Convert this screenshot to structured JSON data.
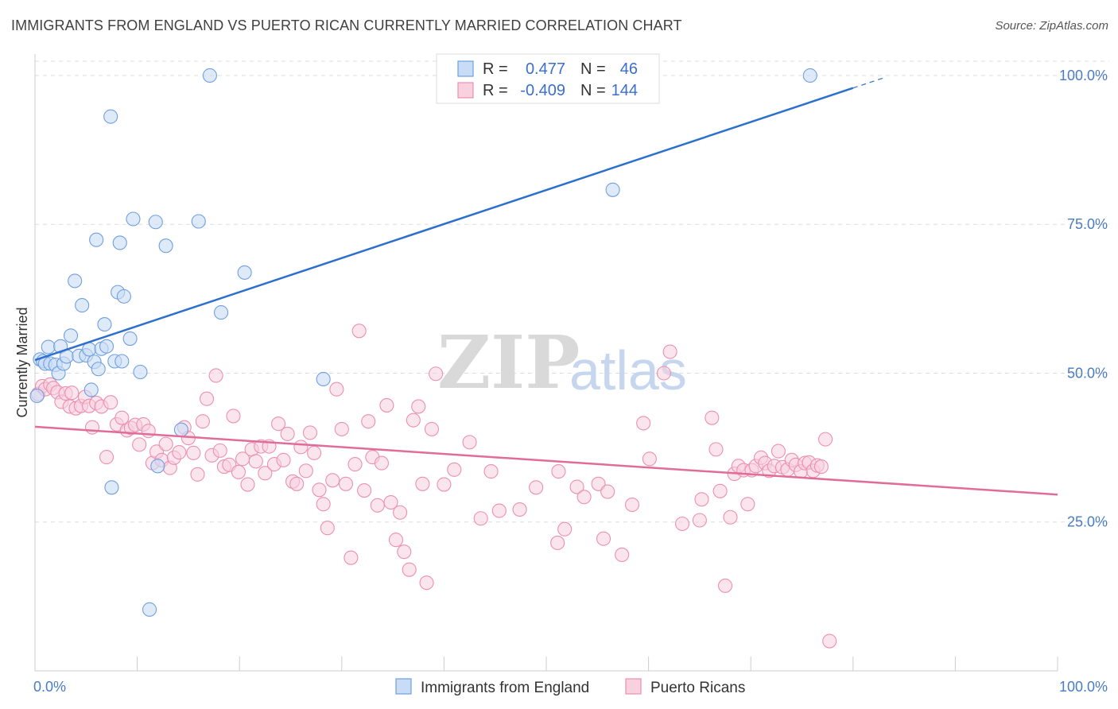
{
  "title": "IMMIGRANTS FROM ENGLAND VS PUERTO RICAN CURRENTLY MARRIED CORRELATION CHART",
  "source": "Source: ZipAtlas.com",
  "watermark": {
    "zip": "ZIP",
    "atlas": "atlas"
  },
  "legend": {
    "r_label": "R =",
    "n_label": "N =",
    "rows": [
      {
        "r": "0.477",
        "n": "46"
      },
      {
        "r": "-0.409",
        "n": "144"
      }
    ]
  },
  "colors": {
    "blue": "#6f9fe0",
    "blue_fill": "#c9dcf5",
    "blue_line": "#2d6fcf",
    "pink": "#ec8fb0",
    "pink_fill": "#f8d0de",
    "pink_line": "#e06d98",
    "grid": "#dddddd",
    "axis_text": "#4a7cc4"
  },
  "chart_data": {
    "type": "scatter",
    "title": "IMMIGRANTS FROM ENGLAND VS PUERTO RICAN CURRENTLY MARRIED CORRELATION CHART",
    "xlabel": "",
    "ylabel": "Currently Married",
    "xlim": [
      0,
      100
    ],
    "ylim": [
      0,
      102
    ],
    "x_tick_labels": [
      "0.0%",
      "100.0%"
    ],
    "y_ticks": [
      25,
      50,
      75,
      100
    ],
    "y_tick_labels": [
      "25.0%",
      "50.0%",
      "75.0%",
      "100.0%"
    ],
    "grid": true,
    "legend_position": "top-center",
    "series": [
      {
        "name": "Immigrants from England",
        "r": 0.477,
        "n": 46,
        "trend": {
          "x0": 0,
          "y0": 52.2,
          "x1": 80,
          "y1": 97.9,
          "dash_to": {
            "x": 83,
            "y": 99.6
          }
        },
        "points": [
          [
            0.2,
            46.2
          ],
          [
            0.5,
            52.3
          ],
          [
            0.8,
            52.0
          ],
          [
            1.0,
            51.6
          ],
          [
            1.3,
            54.4
          ],
          [
            1.5,
            51.6
          ],
          [
            2.0,
            51.4
          ],
          [
            2.3,
            50.0
          ],
          [
            2.5,
            54.5
          ],
          [
            2.8,
            51.6
          ],
          [
            3.1,
            52.8
          ],
          [
            3.5,
            56.3
          ],
          [
            3.9,
            65.5
          ],
          [
            4.3,
            52.9
          ],
          [
            4.6,
            61.4
          ],
          [
            5.0,
            53.0
          ],
          [
            5.3,
            54.0
          ],
          [
            5.5,
            47.2
          ],
          [
            5.8,
            51.9
          ],
          [
            6.0,
            72.4
          ],
          [
            6.2,
            50.7
          ],
          [
            6.5,
            54.1
          ],
          [
            6.8,
            58.2
          ],
          [
            7.0,
            54.5
          ],
          [
            7.4,
            93.1
          ],
          [
            7.8,
            52.0
          ],
          [
            8.1,
            63.6
          ],
          [
            8.5,
            52.0
          ],
          [
            8.3,
            71.9
          ],
          [
            8.7,
            62.9
          ],
          [
            9.3,
            55.8
          ],
          [
            9.6,
            75.9
          ],
          [
            10.3,
            50.2
          ],
          [
            11.2,
            10.3
          ],
          [
            11.8,
            75.4
          ],
          [
            12.0,
            34.4
          ],
          [
            12.8,
            71.4
          ],
          [
            14.3,
            40.5
          ],
          [
            16.0,
            75.5
          ],
          [
            17.1,
            100.0
          ],
          [
            18.2,
            60.2
          ],
          [
            20.5,
            66.9
          ],
          [
            28.2,
            49.0
          ],
          [
            7.5,
            30.8
          ],
          [
            56.5,
            80.8
          ],
          [
            75.8,
            100.0
          ]
        ]
      },
      {
        "name": "Puerto Ricans",
        "r": -0.409,
        "n": 144,
        "trend": {
          "x0": 0,
          "y0": 41.0,
          "x1": 100,
          "y1": 29.6
        },
        "points": [
          [
            0.3,
            46.5
          ],
          [
            0.7,
            47.8
          ],
          [
            1.0,
            47.3
          ],
          [
            1.5,
            48.1
          ],
          [
            1.8,
            47.5
          ],
          [
            2.2,
            46.8
          ],
          [
            2.6,
            45.2
          ],
          [
            3.0,
            46.6
          ],
          [
            3.4,
            44.4
          ],
          [
            3.6,
            46.7
          ],
          [
            4.0,
            44.1
          ],
          [
            4.5,
            44.5
          ],
          [
            4.9,
            46.0
          ],
          [
            5.3,
            44.5
          ],
          [
            5.6,
            40.9
          ],
          [
            6.0,
            45.0
          ],
          [
            6.5,
            44.4
          ],
          [
            7.0,
            35.9
          ],
          [
            7.4,
            45.1
          ],
          [
            8.0,
            41.4
          ],
          [
            8.5,
            42.5
          ],
          [
            9.0,
            40.4
          ],
          [
            9.4,
            40.8
          ],
          [
            9.8,
            41.3
          ],
          [
            10.2,
            38.0
          ],
          [
            10.6,
            41.4
          ],
          [
            11.1,
            40.3
          ],
          [
            11.5,
            34.9
          ],
          [
            11.9,
            36.8
          ],
          [
            12.4,
            35.4
          ],
          [
            12.8,
            38.1
          ],
          [
            13.2,
            34.1
          ],
          [
            13.6,
            35.8
          ],
          [
            14.1,
            36.7
          ],
          [
            14.6,
            40.9
          ],
          [
            15.0,
            39.1
          ],
          [
            15.5,
            36.6
          ],
          [
            15.9,
            33.0
          ],
          [
            16.4,
            41.9
          ],
          [
            16.8,
            45.7
          ],
          [
            17.3,
            36.2
          ],
          [
            17.7,
            49.6
          ],
          [
            18.1,
            37.0
          ],
          [
            18.5,
            34.3
          ],
          [
            19.0,
            34.6
          ],
          [
            19.4,
            42.8
          ],
          [
            19.9,
            33.4
          ],
          [
            20.3,
            35.6
          ],
          [
            20.8,
            31.3
          ],
          [
            21.2,
            37.2
          ],
          [
            21.6,
            35.2
          ],
          [
            22.1,
            37.7
          ],
          [
            22.5,
            33.2
          ],
          [
            22.9,
            37.7
          ],
          [
            23.4,
            34.7
          ],
          [
            23.8,
            41.5
          ],
          [
            24.3,
            35.4
          ],
          [
            24.7,
            39.8
          ],
          [
            25.2,
            31.8
          ],
          [
            25.6,
            31.4
          ],
          [
            26.0,
            37.6
          ],
          [
            26.5,
            33.6
          ],
          [
            26.9,
            40.0
          ],
          [
            27.3,
            36.6
          ],
          [
            27.8,
            30.4
          ],
          [
            28.2,
            28.0
          ],
          [
            28.6,
            24.0
          ],
          [
            29.1,
            32.0
          ],
          [
            29.5,
            47.3
          ],
          [
            30.0,
            40.6
          ],
          [
            30.4,
            31.4
          ],
          [
            30.9,
            19.0
          ],
          [
            31.3,
            34.7
          ],
          [
            31.7,
            57.1
          ],
          [
            32.2,
            30.3
          ],
          [
            32.6,
            41.9
          ],
          [
            33.0,
            35.9
          ],
          [
            33.5,
            27.8
          ],
          [
            33.9,
            34.9
          ],
          [
            34.4,
            44.6
          ],
          [
            34.8,
            28.3
          ],
          [
            35.3,
            22.0
          ],
          [
            35.7,
            26.6
          ],
          [
            36.1,
            20.0
          ],
          [
            36.6,
            17.0
          ],
          [
            37.0,
            42.1
          ],
          [
            37.5,
            44.4
          ],
          [
            37.9,
            31.4
          ],
          [
            38.3,
            14.8
          ],
          [
            38.8,
            40.6
          ],
          [
            39.2,
            49.9
          ],
          [
            40.0,
            31.3
          ],
          [
            41.0,
            33.8
          ],
          [
            42.5,
            38.4
          ],
          [
            43.6,
            25.6
          ],
          [
            44.6,
            33.5
          ],
          [
            45.4,
            26.9
          ],
          [
            47.4,
            27.1
          ],
          [
            49.0,
            30.8
          ],
          [
            51.1,
            21.5
          ],
          [
            51.2,
            33.5
          ],
          [
            51.8,
            23.8
          ],
          [
            53.0,
            30.9
          ],
          [
            53.7,
            29.2
          ],
          [
            55.1,
            31.4
          ],
          [
            55.6,
            22.2
          ],
          [
            56.0,
            30.1
          ],
          [
            57.4,
            19.5
          ],
          [
            58.4,
            27.9
          ],
          [
            59.5,
            41.6
          ],
          [
            60.1,
            35.6
          ],
          [
            61.5,
            50.0
          ],
          [
            62.1,
            53.6
          ],
          [
            63.3,
            24.7
          ],
          [
            65.0,
            25.3
          ],
          [
            65.2,
            28.8
          ],
          [
            66.2,
            42.5
          ],
          [
            66.6,
            37.2
          ],
          [
            67.0,
            30.2
          ],
          [
            67.5,
            14.3
          ],
          [
            68.0,
            25.8
          ],
          [
            68.4,
            33.1
          ],
          [
            68.8,
            34.4
          ],
          [
            69.3,
            33.7
          ],
          [
            69.7,
            28.0
          ],
          [
            70.1,
            33.7
          ],
          [
            70.5,
            34.4
          ],
          [
            71.0,
            35.8
          ],
          [
            71.4,
            34.9
          ],
          [
            71.8,
            33.6
          ],
          [
            72.3,
            34.4
          ],
          [
            72.7,
            36.9
          ],
          [
            73.1,
            34.2
          ],
          [
            73.6,
            33.8
          ],
          [
            74.0,
            35.4
          ],
          [
            74.4,
            34.6
          ],
          [
            74.9,
            33.5
          ],
          [
            75.3,
            34.9
          ],
          [
            75.7,
            35.0
          ],
          [
            76.1,
            33.6
          ],
          [
            76.5,
            34.5
          ],
          [
            76.9,
            34.3
          ],
          [
            77.3,
            38.9
          ],
          [
            77.7,
            5.0
          ]
        ]
      }
    ]
  },
  "bottom_legend": [
    {
      "label": "Immigrants from England"
    },
    {
      "label": "Puerto Ricans"
    }
  ]
}
